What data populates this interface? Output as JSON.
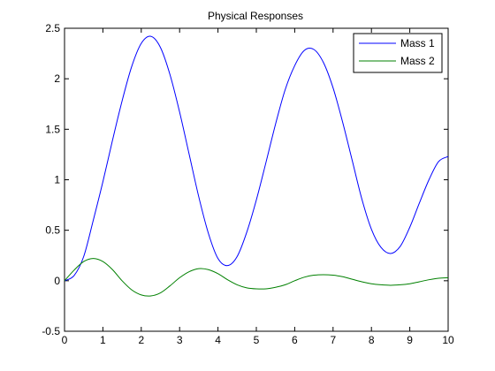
{
  "chart_data": {
    "type": "line",
    "title": "Physical Responses",
    "xlabel": "",
    "ylabel": "",
    "xlim": [
      0,
      10
    ],
    "ylim": [
      -0.5,
      2.5
    ],
    "xticks": [
      0,
      1,
      2,
      3,
      4,
      5,
      6,
      7,
      8,
      9,
      10
    ],
    "yticks": [
      -0.5,
      0,
      0.5,
      1,
      1.5,
      2,
      2.5
    ],
    "ytick_labels": [
      "-0.5",
      "0",
      "0.5",
      "1",
      "1.5",
      "2",
      "2.5"
    ],
    "grid": false,
    "legend_position": "top-right",
    "series": [
      {
        "name": "Mass 1",
        "color": "#0000ff",
        "x": [
          0,
          0.25,
          0.5,
          0.75,
          1.0,
          1.25,
          1.5,
          1.75,
          2.0,
          2.25,
          2.5,
          2.75,
          3.0,
          3.25,
          3.5,
          3.75,
          4.0,
          4.25,
          4.5,
          4.75,
          5.0,
          5.25,
          5.5,
          5.75,
          6.0,
          6.25,
          6.5,
          6.75,
          7.0,
          7.25,
          7.5,
          7.75,
          8.0,
          8.25,
          8.5,
          8.75,
          9.0,
          9.25,
          9.5,
          9.75,
          10.0
        ],
        "y": [
          0,
          0.052,
          0.24,
          0.6,
          0.98,
          1.39,
          1.78,
          2.12,
          2.35,
          2.42,
          2.31,
          2.04,
          1.67,
          1.25,
          0.83,
          0.47,
          0.22,
          0.15,
          0.24,
          0.48,
          0.8,
          1.17,
          1.55,
          1.89,
          2.13,
          2.28,
          2.29,
          2.16,
          1.91,
          1.57,
          1.19,
          0.81,
          0.51,
          0.33,
          0.27,
          0.34,
          0.53,
          0.77,
          1.0,
          1.18,
          1.23
        ]
      },
      {
        "name": "Mass 2",
        "color": "#008000",
        "x": [
          0,
          0.25,
          0.5,
          0.75,
          1.0,
          1.25,
          1.5,
          1.75,
          2.0,
          2.25,
          2.5,
          2.75,
          3.0,
          3.25,
          3.5,
          3.75,
          4.0,
          4.25,
          4.5,
          4.75,
          5.0,
          5.25,
          5.5,
          5.75,
          6.0,
          6.25,
          6.5,
          6.75,
          7.0,
          7.25,
          7.5,
          7.75,
          8.0,
          8.25,
          8.5,
          8.75,
          9.0,
          9.25,
          9.5,
          9.75,
          10.0
        ],
        "y": [
          0,
          0.105,
          0.19,
          0.22,
          0.19,
          0.11,
          0.0,
          -0.09,
          -0.14,
          -0.15,
          -0.12,
          -0.05,
          0.03,
          0.09,
          0.12,
          0.11,
          0.07,
          0.01,
          -0.04,
          -0.07,
          -0.08,
          -0.08,
          -0.065,
          -0.04,
          0.0,
          0.035,
          0.055,
          0.06,
          0.055,
          0.04,
          0.015,
          -0.01,
          -0.03,
          -0.04,
          -0.045,
          -0.04,
          -0.03,
          -0.01,
          0.01,
          0.025,
          0.03
        ]
      }
    ]
  }
}
